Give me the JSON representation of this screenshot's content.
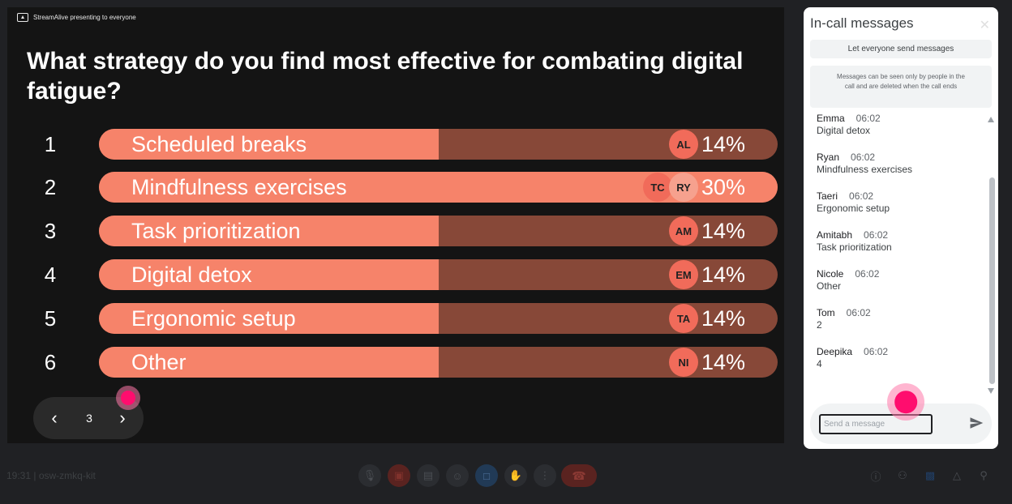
{
  "presenter": {
    "text": "StreamAlive presenting to everyone",
    "icon": "present-screen-icon"
  },
  "poll": {
    "question": "What strategy do you find most effective for combating digital fatigue?",
    "options": [
      {
        "number": "1",
        "label": "Scheduled breaks",
        "percent": "14%",
        "share": 0.14,
        "avatars": [
          "AL"
        ]
      },
      {
        "number": "2",
        "label": "Mindfulness exercises",
        "percent": "30%",
        "share": 0.3,
        "avatars": [
          "TC",
          "RY"
        ]
      },
      {
        "number": "3",
        "label": "Task prioritization",
        "percent": "14%",
        "share": 0.14,
        "avatars": [
          "AM"
        ]
      },
      {
        "number": "4",
        "label": "Digital detox",
        "percent": "14%",
        "share": 0.14,
        "avatars": [
          "EM"
        ]
      },
      {
        "number": "5",
        "label": "Ergonomic setup",
        "percent": "14%",
        "share": 0.14,
        "avatars": [
          "TA"
        ]
      },
      {
        "number": "6",
        "label": "Other",
        "percent": "14%",
        "share": 0.14,
        "avatars": [
          "NI"
        ]
      }
    ],
    "colors": {
      "fill": "#f6836a",
      "track": "#874838",
      "avatar": "#f16b5a"
    }
  },
  "pager": {
    "page": "3",
    "prev_icon": "chevron-left-icon",
    "next_icon": "chevron-right-icon"
  },
  "chat": {
    "title": "In-call messages",
    "close_icon": "close-icon",
    "toggle_label": "Let everyone send messages",
    "notice": "Messages can be seen only by people in the call and are deleted when the call ends",
    "messages": [
      {
        "sender": "Emma",
        "time": "06:02",
        "text": "Digital detox"
      },
      {
        "sender": "Ryan",
        "time": "06:02",
        "text": "Mindfulness exercises"
      },
      {
        "sender": "Taeri",
        "time": "06:02",
        "text": "Ergonomic setup"
      },
      {
        "sender": "Amitabh",
        "time": "06:02",
        "text": "Task prioritization"
      },
      {
        "sender": "Nicole",
        "time": "06:02",
        "text": "Other"
      },
      {
        "sender": "Tom",
        "time": "06:02",
        "text": "2"
      },
      {
        "sender": "Deepika",
        "time": "06:02",
        "text": "4"
      }
    ],
    "input_placeholder": "Send a message",
    "send_icon": "send-icon"
  },
  "meeting": {
    "time": "19:31",
    "separator": "|",
    "code": "osw-zmkq-kit"
  },
  "controls": [
    "mic-icon",
    "camera-off-icon",
    "captions-icon",
    "emoji-icon",
    "present-icon",
    "raise-hand-icon",
    "more-options-icon",
    "leave-call-icon"
  ],
  "side_controls": [
    "info-icon",
    "people-icon",
    "chat-icon",
    "activities-icon",
    "host-controls-icon"
  ]
}
